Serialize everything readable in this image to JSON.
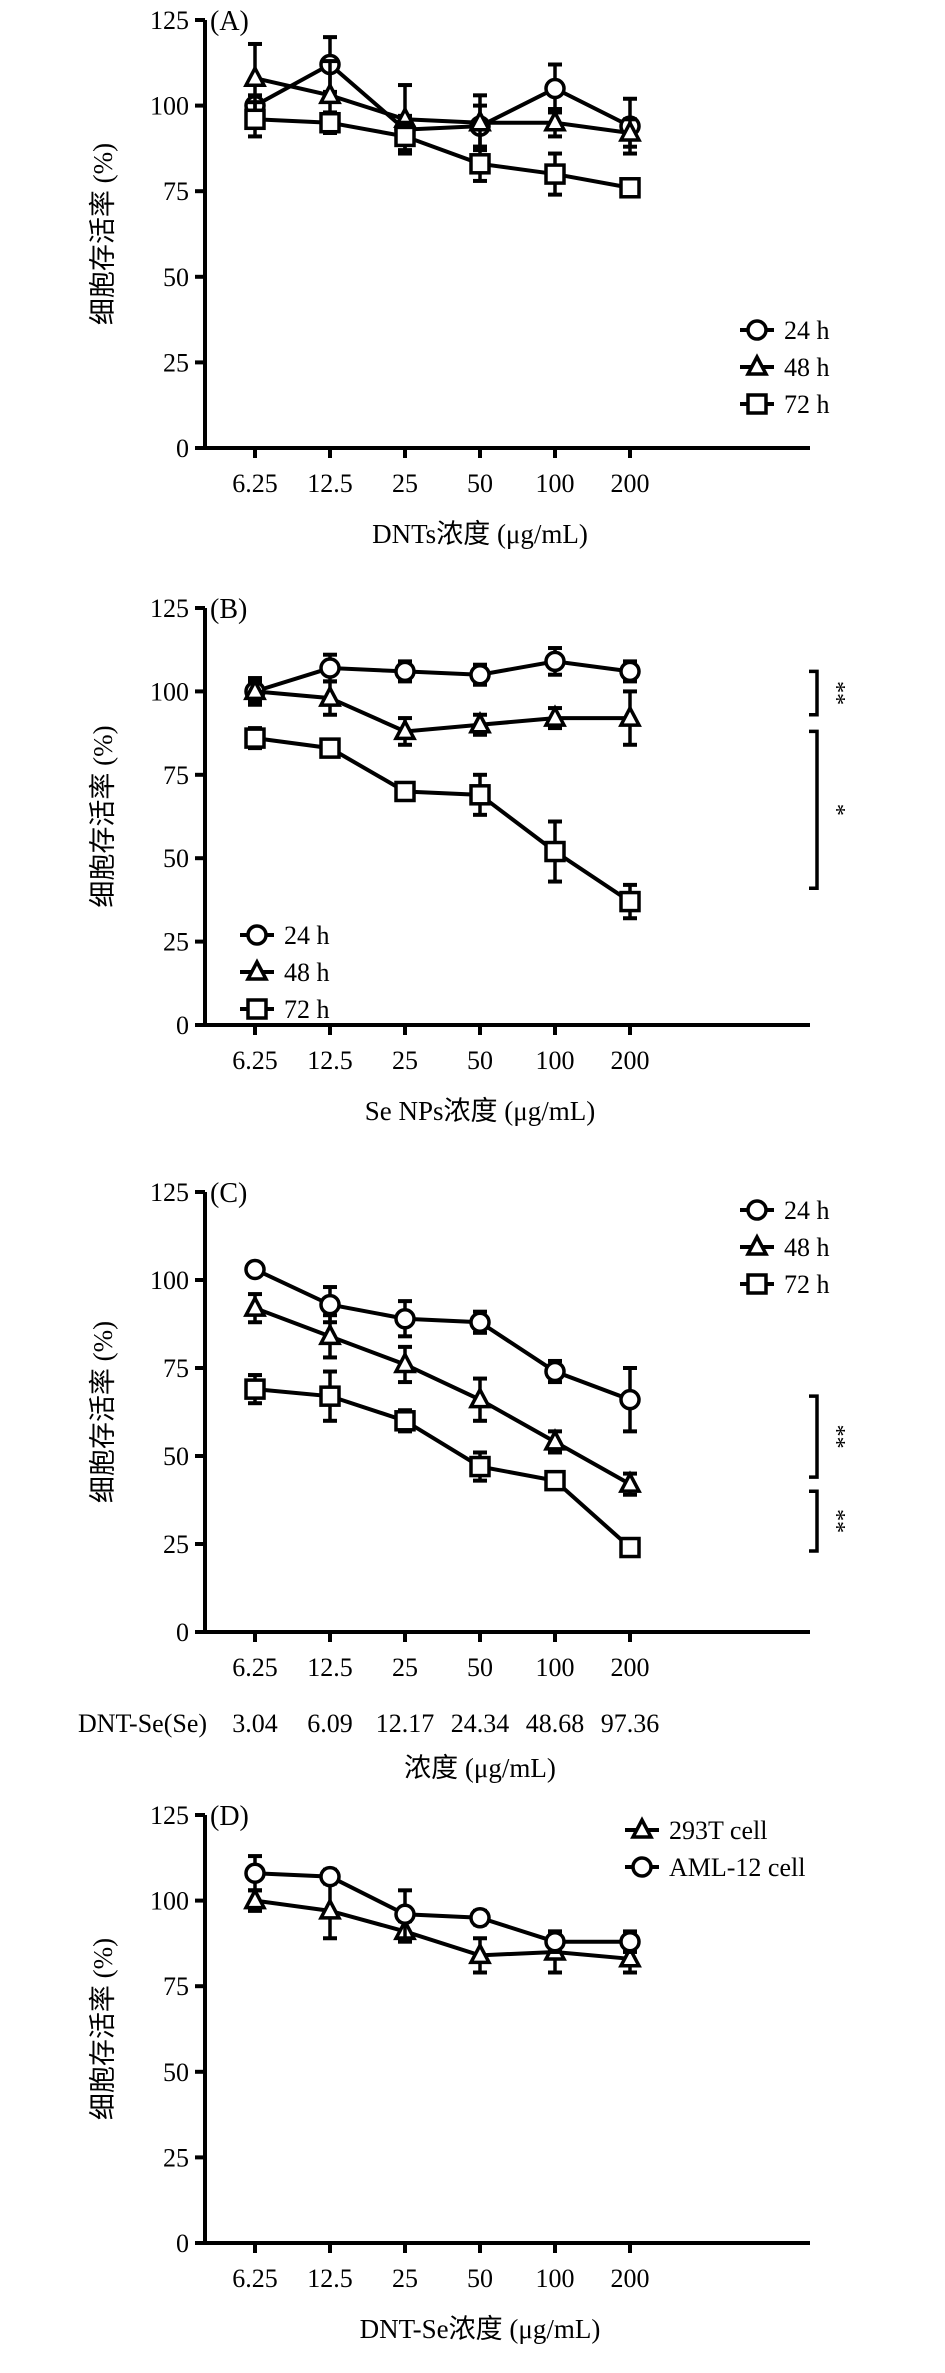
{
  "chart_data": [
    {
      "type": "line",
      "panel_label": "(A)",
      "ylabel": "细胞存活率 (%)",
      "xlabel": "DNTs浓度 (μg/mL)",
      "categories": [
        "6.25",
        "12.5",
        "25",
        "50",
        "100",
        "200"
      ],
      "yticks": [
        "0",
        "25",
        "50",
        "75",
        "100",
        "125"
      ],
      "ylim": [
        0,
        125
      ],
      "legend_position": "bottom-right",
      "series": [
        {
          "name": "24 h",
          "marker": "circle",
          "values": [
            100,
            112,
            93,
            94,
            105,
            94
          ],
          "errors": [
            3,
            8,
            4,
            6,
            7,
            8
          ]
        },
        {
          "name": "48 h",
          "marker": "triangle",
          "values": [
            108,
            103,
            96,
            95,
            95,
            92
          ],
          "errors": [
            10,
            10,
            10,
            8,
            4,
            4
          ]
        },
        {
          "name": "72 h",
          "marker": "square",
          "values": [
            96,
            95,
            91,
            83,
            80,
            76
          ],
          "errors": [
            5,
            3,
            4,
            5,
            6,
            1
          ]
        }
      ],
      "significance": []
    },
    {
      "type": "line",
      "panel_label": "(B)",
      "ylabel": "细胞存活率 (%)",
      "xlabel": "Se NPs浓度 (μg/mL)",
      "categories": [
        "6.25",
        "12.5",
        "25",
        "50",
        "100",
        "200"
      ],
      "yticks": [
        "0",
        "25",
        "50",
        "75",
        "100",
        "125"
      ],
      "ylim": [
        0,
        125
      ],
      "legend_position": "bottom-left",
      "series": [
        {
          "name": "24 h",
          "marker": "circle",
          "values": [
            100,
            107,
            106,
            105,
            109,
            106
          ],
          "errors": [
            4,
            4,
            3,
            3,
            4,
            3
          ]
        },
        {
          "name": "48 h",
          "marker": "triangle",
          "values": [
            100,
            98,
            88,
            90,
            92,
            92
          ],
          "errors": [
            3,
            5,
            4,
            3,
            3,
            8
          ]
        },
        {
          "name": "72 h",
          "marker": "square",
          "values": [
            86,
            83,
            70,
            69,
            52,
            37
          ],
          "errors": [
            3,
            2,
            2,
            6,
            9,
            5
          ]
        }
      ],
      "significance": [
        {
          "label": "**",
          "from": 106,
          "to": 93
        },
        {
          "label": "*",
          "from": 88,
          "to": 41
        }
      ]
    },
    {
      "type": "line",
      "panel_label": "(C)",
      "ylabel": "细胞存活率 (%)",
      "xlabel": "浓度 (μg/mL)",
      "categories": [
        "6.25",
        "12.5",
        "25",
        "50",
        "100",
        "200"
      ],
      "secondary_row_label": "DNT-Se(Se)",
      "secondary_categories": [
        "3.04",
        "6.09",
        "12.17",
        "24.34",
        "48.68",
        "97.36"
      ],
      "yticks": [
        "0",
        "25",
        "50",
        "75",
        "100",
        "125"
      ],
      "ylim": [
        0,
        125
      ],
      "legend_position": "top-right",
      "series": [
        {
          "name": "24 h",
          "marker": "circle",
          "values": [
            103,
            93,
            89,
            88,
            74,
            66
          ],
          "errors": [
            1,
            5,
            5,
            3,
            3,
            9
          ]
        },
        {
          "name": "48 h",
          "marker": "triangle",
          "values": [
            92,
            84,
            76,
            66,
            54,
            42
          ],
          "errors": [
            4,
            6,
            5,
            6,
            3,
            3
          ]
        },
        {
          "name": "72 h",
          "marker": "square",
          "values": [
            69,
            67,
            60,
            47,
            43,
            24
          ],
          "errors": [
            4,
            7,
            3,
            4,
            1,
            1
          ]
        }
      ],
      "significance": [
        {
          "label": "**",
          "from": 67,
          "to": 44
        },
        {
          "label": "**",
          "from": 40,
          "to": 23
        }
      ]
    },
    {
      "type": "line",
      "panel_label": "(D)",
      "ylabel": "细胞存活率 (%)",
      "xlabel": "DNT-Se浓度 (μg/mL)",
      "categories": [
        "6.25",
        "12.5",
        "25",
        "50",
        "100",
        "200"
      ],
      "yticks": [
        "0",
        "25",
        "50",
        "75",
        "100",
        "125"
      ],
      "ylim": [
        0,
        125
      ],
      "legend_position": "top-right",
      "series": [
        {
          "name": "293T cell",
          "marker": "triangle",
          "values": [
            100,
            97,
            91,
            84,
            85,
            83
          ],
          "errors": [
            3,
            8,
            3,
            5,
            6,
            4
          ]
        },
        {
          "name": "AML-12 cell",
          "marker": "circle",
          "values": [
            108,
            107,
            96,
            95,
            88,
            88
          ],
          "errors": [
            5,
            2,
            7,
            2,
            3,
            3
          ]
        }
      ],
      "significance": []
    }
  ]
}
